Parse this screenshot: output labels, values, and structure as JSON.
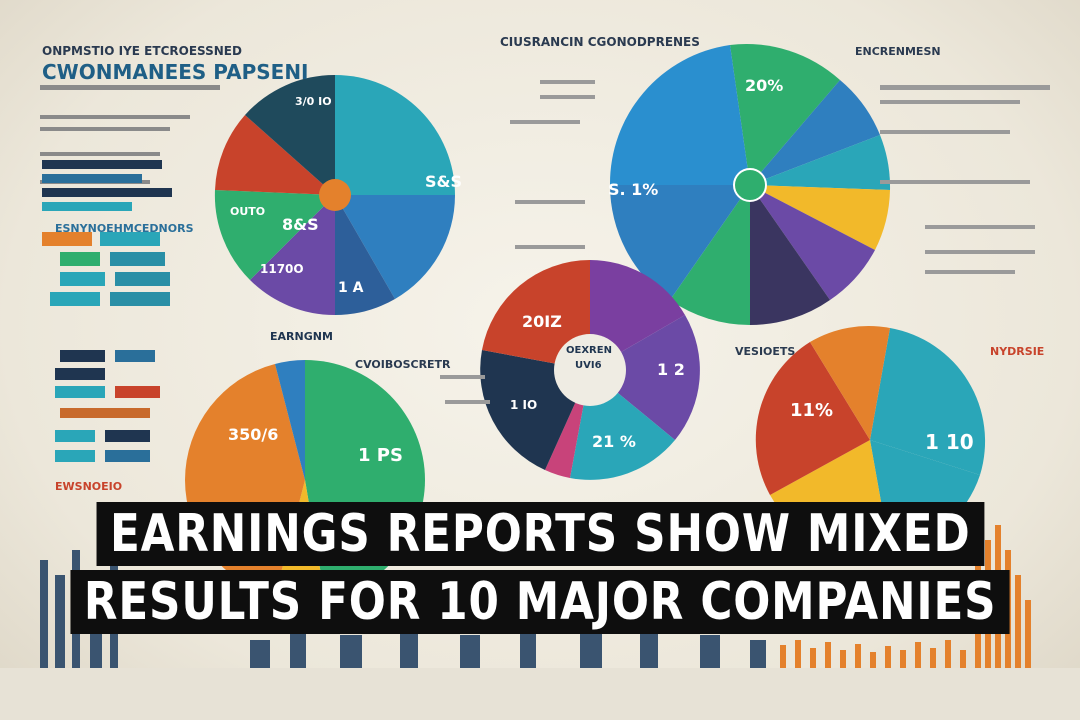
{
  "header": {
    "left_title_1": "ONPMSTIO IYE ETCROESSNED",
    "left_title_2": "CWONMANEES PAPSENI",
    "center_title": "CIUSRANCIN CGONODPRENES",
    "left_section_1": "ESNYNOEHMCEDNORS",
    "left_section_2": "EWSNOEIO",
    "mid_label_1": "EARNGNM",
    "mid_label_2": "CVOIBOSCRETR",
    "right_label_1": "ENCRENMESN",
    "right_label_2": "VESIOETS",
    "right_label_3": "NYDRSIE"
  },
  "pies": {
    "top_left": {
      "labels": [
        "S&S",
        "8&S",
        "1170O",
        "1 A",
        "OUTO",
        "3/0 IO"
      ]
    },
    "top_right": {
      "labels": [
        "20%",
        "S. 1%"
      ]
    },
    "center": {
      "labels": [
        "20IZ",
        "OEXREN",
        "UVI6",
        "1 2",
        "21 %",
        "1 IO"
      ]
    },
    "bottom_left": {
      "labels": [
        "350/6",
        "1 PS"
      ]
    },
    "bottom_right": {
      "labels": [
        "11%",
        "1 10"
      ]
    }
  },
  "headline": {
    "line1": "EARNINGS REPORTS SHOW MIXED",
    "line2": "RESULTS FOR 10 MAJOR COMPANIES"
  },
  "palette": {
    "teal": "#2aa6b8",
    "blue": "#2f7fbf",
    "navy": "#1f3550",
    "purple": "#6b4aa6",
    "green": "#2fae6e",
    "orange": "#e4812c",
    "red": "#c8432b",
    "yellow": "#f2b92a"
  }
}
